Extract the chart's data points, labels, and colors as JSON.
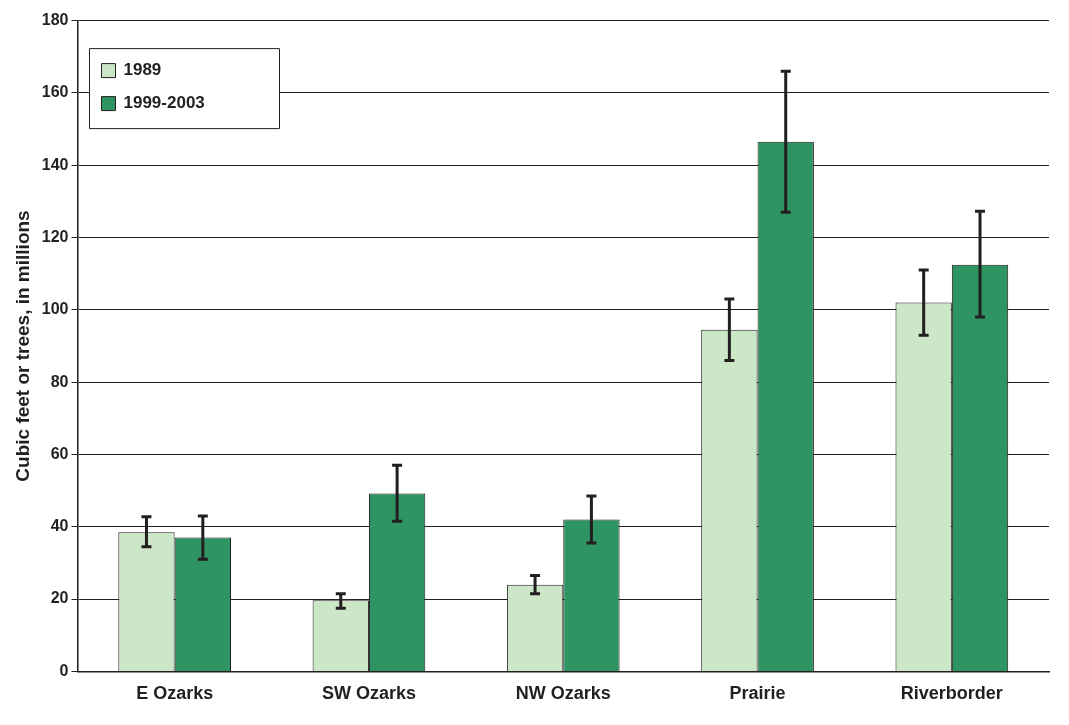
{
  "chart_data": {
    "type": "bar",
    "ylabel": "Cubic feet or trees, in millions",
    "categories": [
      "E Ozarks",
      "SW Ozarks",
      "NW Ozarks",
      "Prairie",
      "Riverborder"
    ],
    "series": [
      {
        "name": "1989",
        "color": "#cce6c8",
        "values": [
          38.5,
          19.7,
          24,
          94.5,
          102
        ],
        "errors": [
          [
            34.5,
            42.8
          ],
          [
            17.5,
            21.5
          ],
          [
            21.5,
            26.5
          ],
          [
            86,
            103
          ],
          [
            93,
            111
          ]
        ]
      },
      {
        "name": "1999-2003",
        "color": "#2e9462",
        "values": [
          37,
          49.2,
          42,
          146.5,
          112.5
        ],
        "errors": [
          [
            31,
            43
          ],
          [
            41.5,
            57
          ],
          [
            35.5,
            48.5
          ],
          [
            127,
            166
          ],
          [
            98,
            127.3
          ]
        ]
      }
    ],
    "ylim": [
      0,
      180
    ],
    "yticks": [
      0,
      20,
      40,
      60,
      80,
      100,
      120,
      140,
      160,
      180
    ],
    "grid": "y",
    "legend": "top left"
  }
}
